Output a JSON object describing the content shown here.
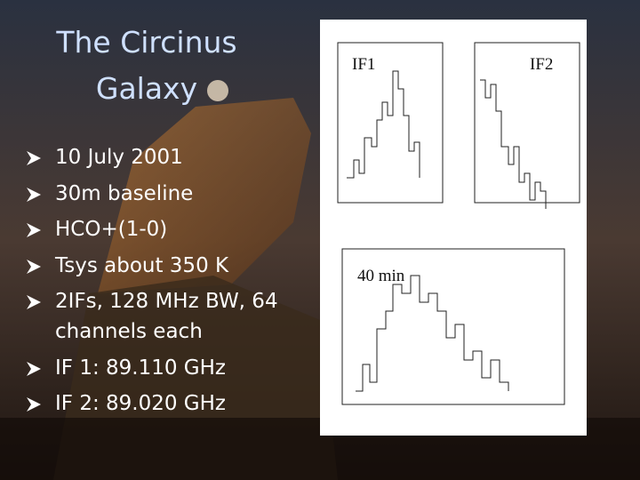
{
  "header": {
    "title": "The Circinus Galaxy"
  },
  "bullets": [
    "10 July 2001",
    "30m baseline",
    "HCO+(1-0)",
    "Tsys about 350 K",
    "2IFs, 128 MHz BW, 64 channels each",
    "IF 1: 89.110 GHz",
    "IF 2: 89.020 GHz"
  ],
  "figure": {
    "labels": [
      "IF1",
      "IF2",
      "40 min"
    ]
  }
}
